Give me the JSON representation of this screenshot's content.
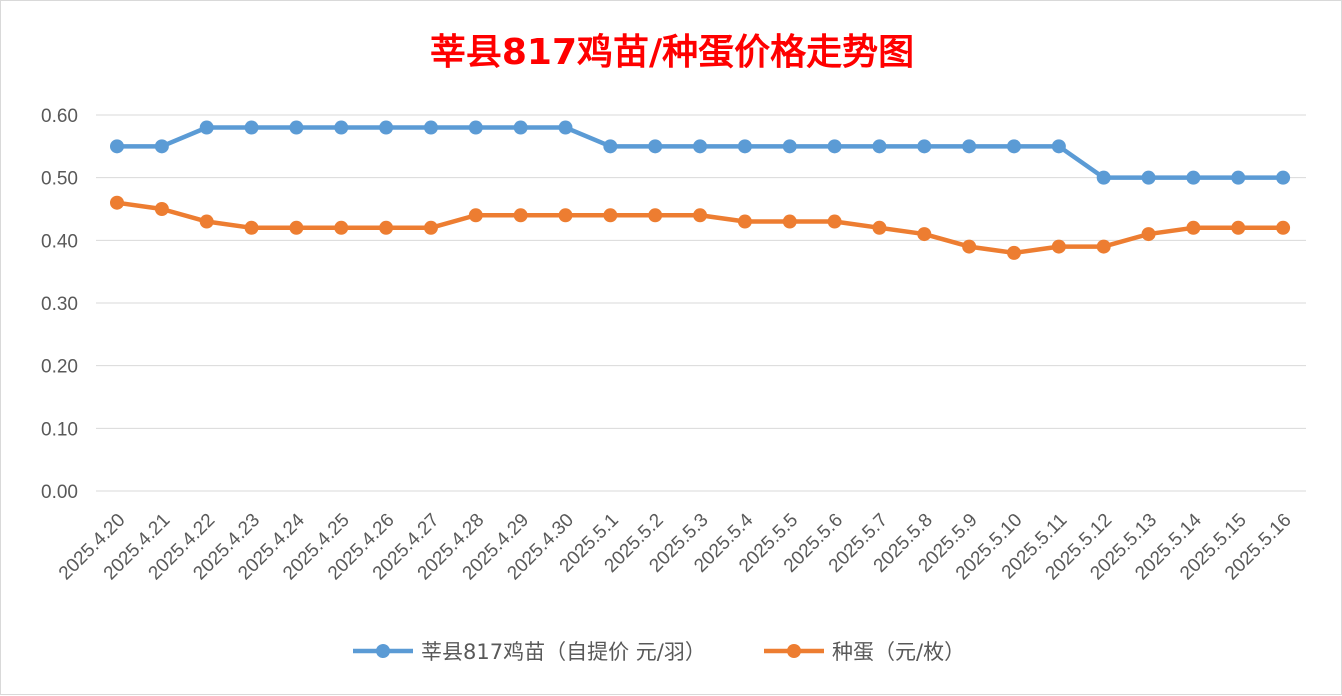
{
  "chart_data": {
    "type": "line",
    "title": "莘县817鸡苗/种蛋价格走势图",
    "xlabel": "",
    "ylabel": "",
    "ylim": [
      0,
      0.6
    ],
    "yticks": [
      "0.00",
      "0.10",
      "0.20",
      "0.30",
      "0.40",
      "0.50",
      "0.60"
    ],
    "grid": true,
    "legend_position": "bottom",
    "categories": [
      "2025.4.20",
      "2025.4.21",
      "2025.4.22",
      "2025.4.23",
      "2025.4.24",
      "2025.4.25",
      "2025.4.26",
      "2025.4.27",
      "2025.4.28",
      "2025.4.29",
      "2025.4.30",
      "2025.5.1",
      "2025.5.2",
      "2025.5.3",
      "2025.5.4",
      "2025.5.5",
      "2025.5.6",
      "2025.5.7",
      "2025.5.8",
      "2025.5.9",
      "2025.5.10",
      "2025.5.11",
      "2025.5.12",
      "2025.5.13",
      "2025.5.14",
      "2025.5.15",
      "2025.5.16"
    ],
    "series": [
      {
        "name": "莘县817鸡苗（自提价 元/羽）",
        "color": "#5b9bd5",
        "values": [
          0.55,
          0.55,
          0.58,
          0.58,
          0.58,
          0.58,
          0.58,
          0.58,
          0.58,
          0.58,
          0.58,
          0.55,
          0.55,
          0.55,
          0.55,
          0.55,
          0.55,
          0.55,
          0.55,
          0.55,
          0.55,
          0.55,
          0.5,
          0.5,
          0.5,
          0.5,
          0.5
        ]
      },
      {
        "name": "种蛋（元/枚）",
        "color": "#ed7d31",
        "values": [
          0.46,
          0.45,
          0.43,
          0.42,
          0.42,
          0.42,
          0.42,
          0.42,
          0.44,
          0.44,
          0.44,
          0.44,
          0.44,
          0.44,
          0.43,
          0.43,
          0.43,
          0.42,
          0.41,
          0.39,
          0.38,
          0.39,
          0.39,
          0.41,
          0.42,
          0.42,
          0.42
        ]
      }
    ]
  }
}
